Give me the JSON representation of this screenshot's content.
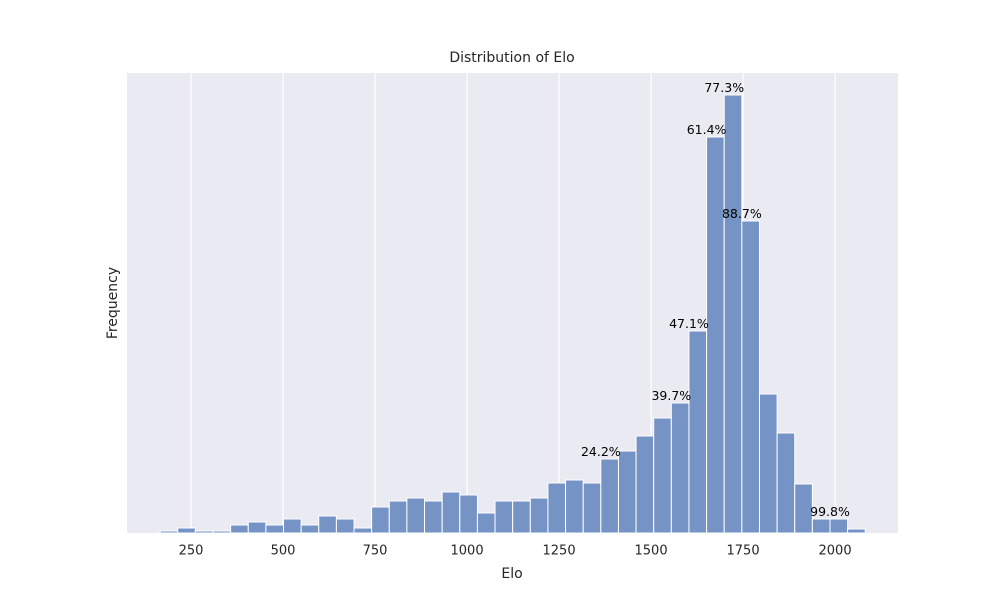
{
  "chart_data": {
    "type": "histogram",
    "title": "Distribution of Elo",
    "x_label": "Elo",
    "y_label": "Frequency",
    "bins": [
      166,
      213.9,
      261.8,
      309.7,
      357.6,
      405.5,
      453.4,
      501.3,
      549.2,
      597.1,
      645,
      692.9,
      740.8,
      788.7,
      836.6,
      884.5,
      932.4,
      980.3,
      1028.2,
      1076.1,
      1124,
      1171.9,
      1219.8,
      1267.7,
      1315.6,
      1363.5,
      1411.4,
      1459.3,
      1507.2,
      1555.1,
      1603,
      1650.9,
      1698.8,
      1746.7,
      1794.6,
      1842.5,
      1890.4,
      1938.3,
      1986.2,
      2034.1,
      2082
    ],
    "values": [
      2,
      5,
      2,
      2,
      8,
      11,
      8,
      14,
      8,
      17,
      14,
      5,
      26,
      32,
      35,
      32,
      41,
      38,
      20,
      32,
      32,
      35,
      50,
      53,
      50,
      74,
      82,
      97,
      115,
      130,
      202,
      396,
      438,
      312,
      139,
      100,
      49,
      14,
      14,
      4
    ],
    "color": "#7593c4",
    "annotations": [
      {
        "text": "24.2%",
        "x": 1363.5
      },
      {
        "text": "39.7%",
        "x": 1555.1
      },
      {
        "text": "47.1%",
        "x": 1603
      },
      {
        "text": "61.4%",
        "x": 1650.9
      },
      {
        "text": "77.3%",
        "x": 1698.8
      },
      {
        "text": "88.7%",
        "x": 1746.7
      },
      {
        "text": "99.8%",
        "x": 1986.2
      }
    ],
    "xlim": [
      76,
      2171
    ],
    "xticks": [
      250,
      500,
      750,
      1000,
      1250,
      1500,
      1750,
      2000
    ],
    "ylim": [
      0,
      460
    ],
    "yticks": [],
    "grid": true
  }
}
